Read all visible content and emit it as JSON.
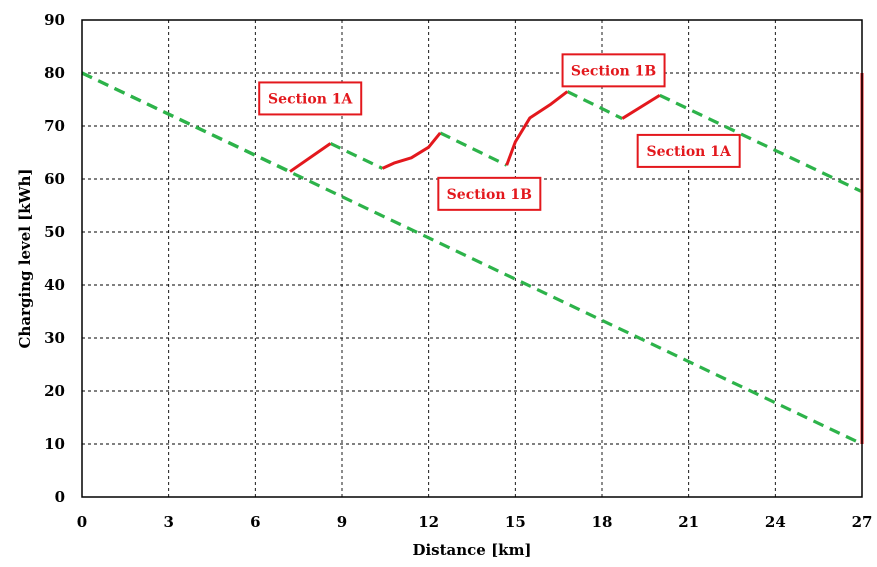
{
  "chart_data": {
    "type": "line",
    "xlabel": "Distance [km]",
    "ylabel": "Charging level [kWh]",
    "xlim": [
      0,
      27
    ],
    "ylim": [
      0,
      90
    ],
    "x_ticks": [
      "0",
      "3",
      "6",
      "9",
      "12",
      "15",
      "18",
      "21",
      "24",
      "27"
    ],
    "y_ticks": [
      "0",
      "10",
      "20",
      "30",
      "40",
      "50",
      "60",
      "70",
      "80",
      "90"
    ],
    "grid": true,
    "colors": {
      "dashed": "#2db34a",
      "solid": "#e3181d",
      "box_text": "#e3181d"
    },
    "dashed_series": [
      {
        "points": [
          [
            0,
            80
          ],
          [
            27,
            10
          ]
        ]
      },
      {
        "points": [
          [
            0,
            80
          ],
          [
            7.2,
            61.4
          ]
        ]
      },
      {
        "points": [
          [
            8.6,
            66.7
          ],
          [
            10.4,
            62.0
          ]
        ]
      },
      {
        "points": [
          [
            12.4,
            68.7
          ],
          [
            14.7,
            62.6
          ]
        ]
      },
      {
        "points": [
          [
            16.8,
            76.5
          ],
          [
            18.7,
            71.4
          ]
        ]
      },
      {
        "points": [
          [
            20.0,
            75.8
          ],
          [
            27,
            57.6
          ]
        ]
      }
    ],
    "solid_series": [
      {
        "points": [
          [
            7.2,
            61.4
          ],
          [
            8.6,
            66.7
          ]
        ]
      },
      {
        "points": [
          [
            10.4,
            62.0
          ],
          [
            10.8,
            63.0
          ],
          [
            11.4,
            64.0
          ],
          [
            12.0,
            66.0
          ],
          [
            12.4,
            68.7
          ]
        ]
      },
      {
        "points": [
          [
            14.7,
            62.6
          ],
          [
            15.0,
            67.0
          ],
          [
            15.5,
            71.5
          ],
          [
            16.2,
            74.0
          ],
          [
            16.8,
            76.5
          ]
        ]
      },
      {
        "points": [
          [
            18.7,
            71.4
          ],
          [
            20.0,
            75.8
          ]
        ]
      },
      {
        "points": [
          [
            27,
            10
          ],
          [
            27,
            80
          ]
        ]
      }
    ],
    "annotations": [
      {
        "text": "Section 1A",
        "x": 7.9,
        "y": 75.2
      },
      {
        "text": "Section 1B",
        "x": 14.1,
        "y": 57.2
      },
      {
        "text": "Section 1B",
        "x": 18.4,
        "y": 80.5
      },
      {
        "text": "Section 1A",
        "x": 21.0,
        "y": 65.3
      }
    ]
  }
}
